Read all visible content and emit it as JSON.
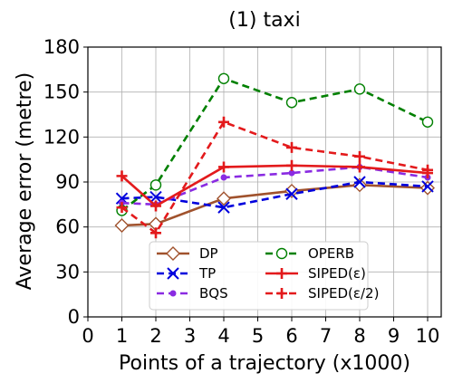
{
  "chart_data": {
    "type": "line",
    "title": "(1) taxi",
    "xlabel": "Points of a trajectory (x1000)",
    "ylabel": "Average error (metre)",
    "xlim": [
      0,
      10.4
    ],
    "ylim": [
      0,
      180
    ],
    "xticks": [
      0,
      1,
      2,
      3,
      4,
      5,
      6,
      7,
      8,
      9,
      10
    ],
    "yticks": [
      0,
      30,
      60,
      90,
      120,
      150,
      180
    ],
    "grid": true,
    "legend_position": "lower-center",
    "series": [
      {
        "name": "DP",
        "color": "#a0522d",
        "dash": "solid",
        "marker": "diamond-open",
        "x": [
          1,
          2,
          4,
          6,
          8,
          10
        ],
        "y": [
          61,
          62,
          79,
          84,
          88,
          86
        ]
      },
      {
        "name": "TP",
        "color": "#0000dd",
        "dash": "dashed",
        "marker": "x",
        "x": [
          1,
          2,
          4,
          6,
          8,
          10
        ],
        "y": [
          79,
          80,
          73,
          82,
          90,
          87
        ]
      },
      {
        "name": "BQS",
        "color": "#8a2be2",
        "dash": "dashed",
        "marker": "dot",
        "x": [
          1,
          2,
          4,
          6,
          8,
          10
        ],
        "y": [
          76,
          75,
          93,
          96,
          100,
          93
        ]
      },
      {
        "name": "OPERB",
        "color": "#008000",
        "dash": "dashed",
        "marker": "circle-open",
        "x": [
          1,
          2,
          4,
          6,
          8,
          10
        ],
        "y": [
          71,
          88,
          159,
          143,
          152,
          130
        ]
      },
      {
        "name": "SIPED(ε)",
        "color": "#e31a1c",
        "dash": "solid",
        "marker": "plus",
        "x": [
          1,
          2,
          4,
          6,
          8,
          10
        ],
        "y": [
          94,
          74,
          100,
          101,
          100,
          96
        ]
      },
      {
        "name": "SIPED(ε/2)",
        "color": "#e31a1c",
        "dash": "dashed",
        "marker": "plus",
        "x": [
          1,
          2,
          4,
          6,
          8,
          10
        ],
        "y": [
          73,
          56,
          130,
          113,
          107,
          98
        ]
      }
    ]
  }
}
